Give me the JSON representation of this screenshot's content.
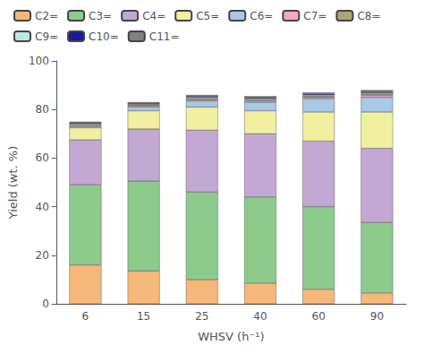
{
  "chart_data": {
    "type": "bar",
    "stacked": true,
    "xlabel": "WHSV (h⁻¹)",
    "ylabel": "Yield (wt. %)",
    "categories": [
      "6",
      "15",
      "25",
      "40",
      "60",
      "90"
    ],
    "series": [
      {
        "name": "C2=",
        "color": "#F5B87A",
        "values": [
          16.0,
          13.5,
          10.0,
          8.5,
          6.0,
          4.5
        ]
      },
      {
        "name": "C3=",
        "color": "#8DCB8D",
        "values": [
          33.0,
          37.0,
          36.0,
          35.5,
          34.0,
          29.0
        ]
      },
      {
        "name": "C4=",
        "color": "#C4A8D4",
        "values": [
          18.5,
          21.5,
          25.5,
          26.0,
          27.0,
          30.5
        ]
      },
      {
        "name": "C5=",
        "color": "#F0F0A0",
        "values": [
          5.0,
          7.5,
          9.5,
          9.5,
          12.0,
          15.0
        ]
      },
      {
        "name": "C6=",
        "color": "#A8C8E8",
        "values": [
          0.5,
          1.5,
          2.5,
          3.5,
          5.5,
          6.0
        ]
      },
      {
        "name": "C7=",
        "color": "#F5A8C8",
        "values": [
          0.5,
          0.5,
          0.5,
          0.5,
          0.5,
          0.8
        ]
      },
      {
        "name": "C8=",
        "color": "#A8A870",
        "values": [
          0.5,
          0.5,
          0.5,
          0.5,
          0.5,
          0.5
        ]
      },
      {
        "name": "C9=",
        "color": "#B8E8E0",
        "values": [
          0.3,
          0.3,
          0.5,
          0.5,
          0.5,
          0.5
        ]
      },
      {
        "name": "C10=",
        "color": "#1A1A9A",
        "values": [
          0.3,
          0.3,
          0.5,
          0.5,
          0.5,
          0.5
        ]
      },
      {
        "name": "C11=",
        "color": "#808080",
        "values": [
          0.4,
          0.4,
          0.5,
          0.5,
          0.5,
          0.7
        ]
      }
    ],
    "ylim": [
      0,
      100
    ],
    "yticks": [
      0,
      20,
      40,
      60,
      80,
      100
    ],
    "grid": false,
    "legend": "upper left"
  }
}
